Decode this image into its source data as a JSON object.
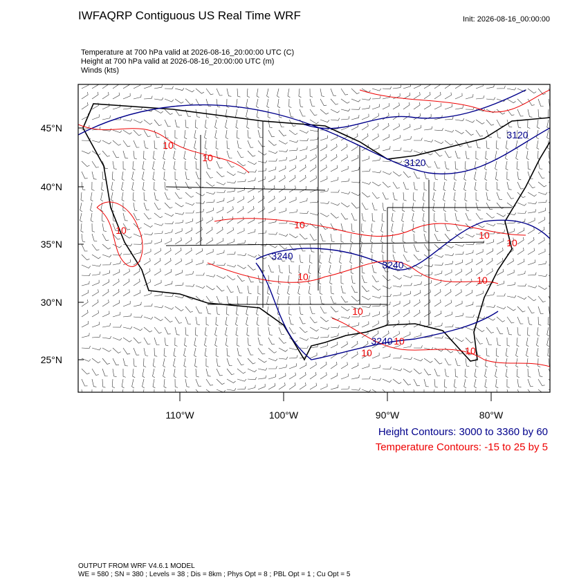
{
  "header": {
    "title": "IWFAQRP Contiguous US Real Time WRF",
    "init": "Init: 2026-08-16_00:00:00"
  },
  "fields": [
    "Temperature at 700 hPa valid at 2026-08-16_20:00:00 UTC   (C)",
    "Height at 700 hPa valid at 2026-08-16_20:00:00 UTC   (m)",
    "Winds   (kts)"
  ],
  "map": {
    "lat_labels": [
      "45°N",
      "40°N",
      "35°N",
      "30°N",
      "25°N"
    ],
    "lon_labels": [
      "110°W",
      "100°W",
      "90°W",
      "80°W"
    ],
    "contour_labels": [
      "10",
      "10",
      "3120",
      "3120",
      "10",
      "10",
      "3240",
      "10",
      "3240",
      "10",
      "10",
      "10",
      "3240",
      "10",
      "10",
      "10",
      "10"
    ]
  },
  "legend": [
    "Height Contours: 3000 to 3360 by 60",
    "Temperature Contours: -15 to 25 by 5"
  ],
  "footer": [
    "OUTPUT FROM WRF V4.6.1 MODEL",
    "WE = 580 ; SN = 380 ; Levels = 38 ; Dis = 8km ; Phys Opt = 8 ; PBL Opt = 1 ; Cu Opt = 5"
  ]
}
